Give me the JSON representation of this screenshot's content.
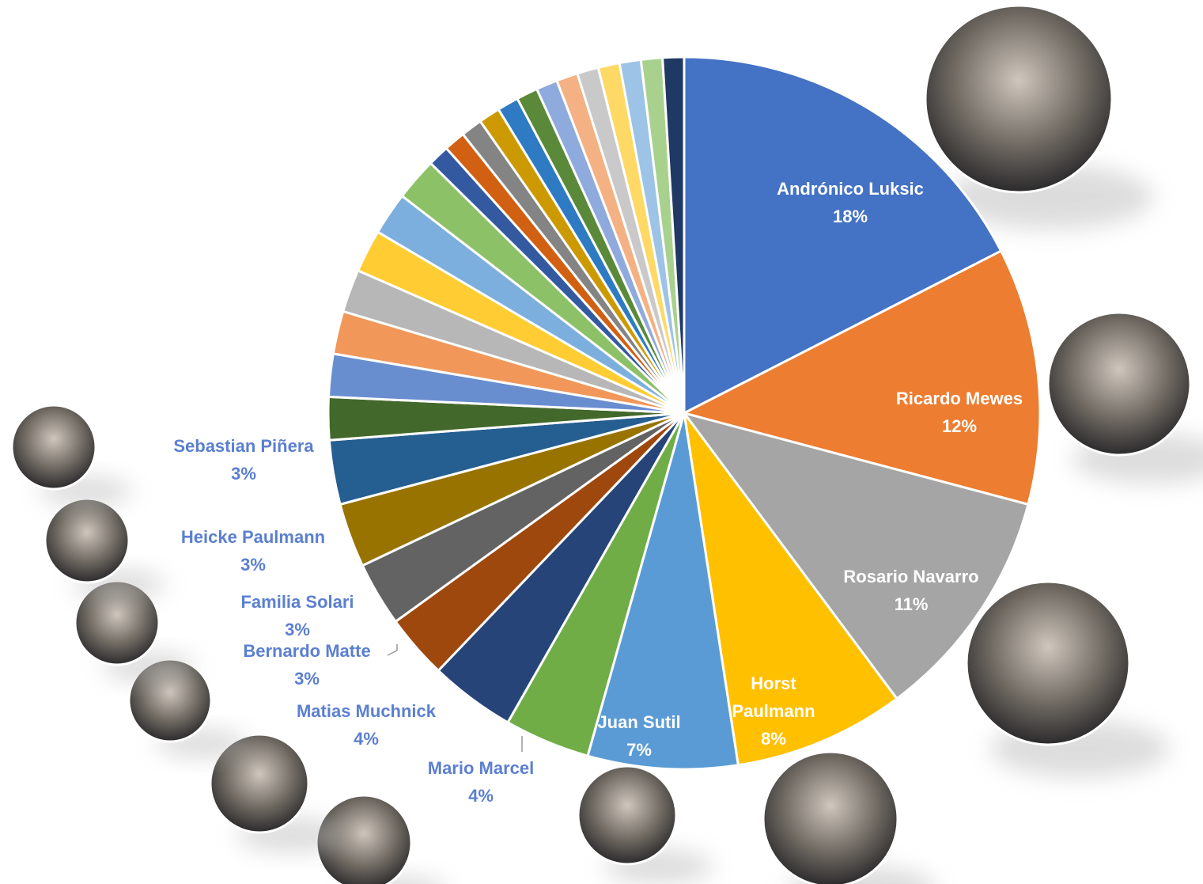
{
  "chart_data": {
    "type": "pie",
    "categories": [
      "Andrónico Luksic",
      "Ricardo Mewes",
      "Rosario Navarro",
      "Horst Paulmann",
      "Juan Sutil",
      "Mario Marcel",
      "Matias Muchnick",
      "Bernardo Matte",
      "Familia Solari",
      "Heicke Paulmann",
      "Sebastian Piñera",
      null,
      null,
      null,
      null,
      null,
      null,
      null,
      null,
      null,
      null,
      null,
      null,
      null,
      null,
      null,
      null,
      null,
      null,
      null,
      null
    ],
    "values": [
      18,
      12,
      11,
      8,
      7,
      4,
      4,
      3,
      3,
      3,
      3,
      2,
      2,
      2,
      2,
      2,
      2,
      2,
      1,
      1,
      1,
      1,
      1,
      1,
      1,
      1,
      1,
      1,
      1,
      1,
      1
    ],
    "value_labels": [
      "18%",
      "12%",
      "11%",
      "8%",
      "7%",
      "4%",
      "4%",
      "3%",
      "3%",
      "3%",
      "3%",
      null,
      null,
      null,
      null,
      null,
      null,
      null,
      null,
      null,
      null,
      null,
      null,
      null,
      null,
      null,
      null,
      null,
      null,
      null,
      null
    ],
    "colors": [
      "#4472C4",
      "#ED7D31",
      "#A5A5A5",
      "#FFC000",
      "#5B9BD5",
      "#70AD47",
      "#264478",
      "#9E480E",
      "#636363",
      "#997300",
      "#255E91",
      "#43682B",
      "#698ED0",
      "#F1975A",
      "#B7B7B7",
      "#FFCD33",
      "#7CAFDD",
      "#8CC168",
      "#335AA1",
      "#D26012",
      "#848484",
      "#CC9A00",
      "#2E7BC4",
      "#5A8A39",
      "#8FAADC",
      "#F4B183",
      "#C9C9C9",
      "#FFD966",
      "#9DC3E6",
      "#A9D18E",
      "#1F3864"
    ]
  }
}
